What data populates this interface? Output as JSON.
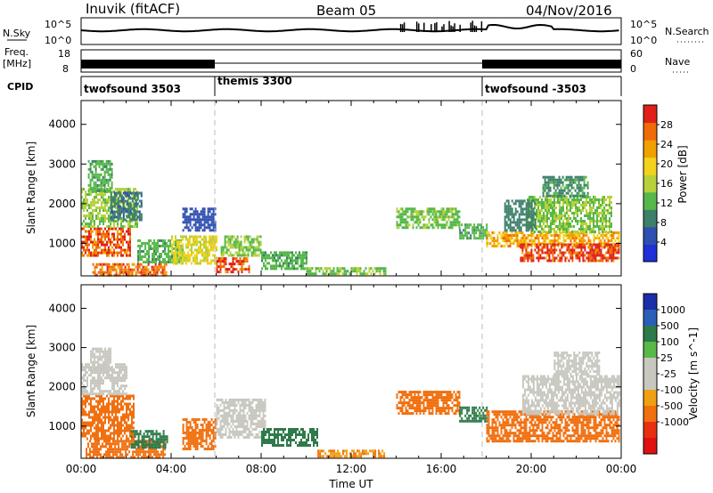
{
  "header": {
    "station": "Inuvik  (fitACF)",
    "beam": "Beam 05",
    "date": "04/Nov/2016"
  },
  "top_panels": {
    "nsky_label": "N.Sky",
    "nsearch_label": "N.Search",
    "nsky_ticks": [
      "10^5",
      "10^0"
    ],
    "freq_label": "Freq.",
    "freq_unit": "[MHz]",
    "freq_ticks": [
      "18",
      "8"
    ],
    "nave_label": "Nave",
    "nave_ticks": [
      "60",
      "0"
    ],
    "cpid_label": "CPID",
    "cpid_segments": [
      {
        "start_hour": 0,
        "end_hour": 6,
        "label": "twofsound 3503"
      },
      {
        "start_hour": 6,
        "end_hour": 18,
        "label": "themis 3300"
      },
      {
        "start_hour": 18,
        "end_hour": 24,
        "label": "twofsound -3503"
      }
    ]
  },
  "colors": {
    "power_scale": [
      "#2030d8",
      "#2f4fb0",
      "#3d7f6a",
      "#56b84a",
      "#b8d03c",
      "#f4d21c",
      "#f0a000",
      "#f06a08",
      "#e02018"
    ],
    "velocity_scale": [
      "#1a2ea8",
      "#2a5fb8",
      "#2e7a4a",
      "#58b848",
      "#c8c8c0",
      "#c8c8c0",
      "#f0a010",
      "#f07010",
      "#e83010",
      "#e01010"
    ]
  },
  "chart_data": [
    {
      "type": "heatmap",
      "title": "Power",
      "xlabel": "",
      "ylabel": "Slant Range [km]",
      "x_tick_labels": [
        "00:00",
        "04:00",
        "08:00",
        "12:00",
        "16:00",
        "20:00",
        "00:00"
      ],
      "xlim_hours": [
        0,
        24
      ],
      "y_ticks": [
        1000,
        2000,
        3000,
        4000
      ],
      "ylim": [
        180,
        4600
      ],
      "colorbar": {
        "label": "Power [dB]",
        "ticks": [
          4,
          8,
          12,
          16,
          20,
          24,
          28
        ],
        "range": [
          0,
          32
        ]
      },
      "regions": [
        {
          "x": [
            0,
            2.2
          ],
          "y": [
            700,
            1400
          ],
          "value": 28
        },
        {
          "x": [
            0,
            2.5
          ],
          "y": [
            1400,
            2400
          ],
          "value": 15
        },
        {
          "x": [
            0.3,
            1.4
          ],
          "y": [
            2300,
            3100
          ],
          "value": 12
        },
        {
          "x": [
            1.3,
            2.7
          ],
          "y": [
            1600,
            2300
          ],
          "value": 8
        },
        {
          "x": [
            0.5,
            3.8
          ],
          "y": [
            200,
            500
          ],
          "value": 26
        },
        {
          "x": [
            2.5,
            4.5
          ],
          "y": [
            500,
            1100
          ],
          "value": 12
        },
        {
          "x": [
            4,
            6
          ],
          "y": [
            500,
            1200
          ],
          "value": 18
        },
        {
          "x": [
            4.5,
            6
          ],
          "y": [
            1300,
            1900
          ],
          "value": 6
        },
        {
          "x": [
            6,
            7.5
          ],
          "y": [
            250,
            650
          ],
          "value": 28
        },
        {
          "x": [
            6.2,
            8
          ],
          "y": [
            700,
            1200
          ],
          "value": 14
        },
        {
          "x": [
            8,
            10
          ],
          "y": [
            350,
            800
          ],
          "value": 12
        },
        {
          "x": [
            10,
            13.5
          ],
          "y": [
            200,
            400
          ],
          "value": 14
        },
        {
          "x": [
            14,
            16.8
          ],
          "y": [
            1400,
            1900
          ],
          "value": 13
        },
        {
          "x": [
            16.8,
            18
          ],
          "y": [
            1100,
            1500
          ],
          "value": 12
        },
        {
          "x": [
            18,
            23.9
          ],
          "y": [
            900,
            1300
          ],
          "value": 22
        },
        {
          "x": [
            19.5,
            23.9
          ],
          "y": [
            550,
            1000
          ],
          "value": 29
        },
        {
          "x": [
            19.8,
            23.6
          ],
          "y": [
            1300,
            2200
          ],
          "value": 14
        },
        {
          "x": [
            20.5,
            22.5
          ],
          "y": [
            2200,
            2700
          ],
          "value": 10
        },
        {
          "x": [
            18.8,
            20.2
          ],
          "y": [
            1300,
            2100
          ],
          "value": 9
        }
      ]
    },
    {
      "type": "heatmap",
      "title": "Velocity",
      "xlabel": "Time UT",
      "ylabel": "Slant Range [km]",
      "x_tick_labels": [
        "00:00",
        "04:00",
        "08:00",
        "12:00",
        "16:00",
        "20:00",
        "00:00"
      ],
      "xlim_hours": [
        0,
        24
      ],
      "y_ticks": [
        1000,
        2000,
        3000,
        4000
      ],
      "ylim": [
        180,
        4600
      ],
      "colorbar": {
        "label": "Velocity [m s^-1]",
        "ticks": [
          "1000",
          "500",
          "100",
          "25",
          "-25",
          "-100",
          "-500",
          "-1000"
        ]
      },
      "regions": [
        {
          "x": [
            0,
            2.3
          ],
          "y": [
            700,
            1800
          ],
          "value": -300
        },
        {
          "x": [
            0,
            2
          ],
          "y": [
            1800,
            2600
          ],
          "value": 0
        },
        {
          "x": [
            0.4,
            1.3
          ],
          "y": [
            2400,
            3000
          ],
          "value": 0
        },
        {
          "x": [
            0.2,
            3.7
          ],
          "y": [
            200,
            650
          ],
          "value": -150
        },
        {
          "x": [
            2.2,
            3.8
          ],
          "y": [
            450,
            900
          ],
          "value": 150
        },
        {
          "x": [
            4.5,
            6
          ],
          "y": [
            400,
            1200
          ],
          "value": -200
        },
        {
          "x": [
            6,
            8.2
          ],
          "y": [
            700,
            1700
          ],
          "value": 0
        },
        {
          "x": [
            8,
            10.5
          ],
          "y": [
            500,
            950
          ],
          "value": 300
        },
        {
          "x": [
            10.5,
            13.5
          ],
          "y": [
            200,
            400
          ],
          "value": -100
        },
        {
          "x": [
            14,
            16.8
          ],
          "y": [
            1300,
            1900
          ],
          "value": -300
        },
        {
          "x": [
            16.8,
            18
          ],
          "y": [
            1100,
            1500
          ],
          "value": 120
        },
        {
          "x": [
            18,
            23.9
          ],
          "y": [
            600,
            1400
          ],
          "value": -250
        },
        {
          "x": [
            19.6,
            23.9
          ],
          "y": [
            1300,
            2300
          ],
          "value": 0
        },
        {
          "x": [
            21,
            23
          ],
          "y": [
            2300,
            2900
          ],
          "value": 0
        }
      ]
    }
  ]
}
